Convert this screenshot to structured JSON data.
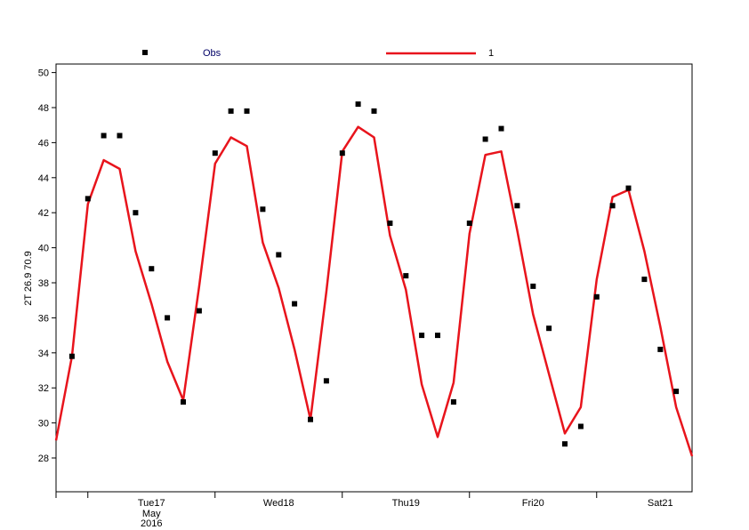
{
  "chart_data": {
    "type": "line",
    "ylabel": "2T 26.9 70.9",
    "xlabel": "",
    "ylim": [
      26,
      50.5
    ],
    "yticks": [
      28,
      30,
      32,
      34,
      36,
      38,
      40,
      42,
      44,
      46,
      48,
      50
    ],
    "grid": false,
    "legend_placement": "top",
    "x_start": "2016-05-16 18:00",
    "x_step_hours": 3,
    "xticks": [
      {
        "label": "Tue17",
        "sub": [
          "May",
          "2016"
        ],
        "time": "2016-05-17 12:00"
      },
      {
        "label": "Wed18",
        "sub": [],
        "time": "2016-05-18 12:00"
      },
      {
        "label": "Thu19",
        "sub": [],
        "time": "2016-05-19 12:00"
      },
      {
        "label": "Fri20",
        "sub": [],
        "time": "2016-05-20 12:00"
      },
      {
        "label": "Sat21",
        "sub": [],
        "time": "2016-05-21 12:00"
      }
    ],
    "series": [
      {
        "name": "Obs",
        "kind": "scatter",
        "color": "#000000",
        "values": [
          null,
          33.8,
          42.8,
          46.4,
          46.4,
          42.0,
          38.8,
          36.0,
          31.2,
          36.4,
          45.4,
          47.8,
          47.8,
          42.2,
          39.6,
          36.8,
          30.2,
          32.4,
          45.4,
          48.2,
          47.8,
          41.4,
          38.4,
          35.0,
          35.0,
          31.2,
          41.4,
          46.2,
          46.8,
          42.4,
          37.8,
          35.4,
          28.8,
          29.8,
          37.2,
          42.4,
          43.4,
          38.2,
          34.2,
          31.8,
          null
        ]
      },
      {
        "name": "1",
        "kind": "line",
        "color": "#e8141c",
        "values": [
          29.0,
          33.8,
          42.5,
          45.0,
          44.5,
          39.8,
          36.8,
          33.5,
          31.3,
          37.8,
          44.8,
          46.3,
          45.8,
          40.3,
          37.7,
          34.2,
          30.2,
          37.5,
          45.5,
          46.9,
          46.3,
          40.7,
          37.6,
          32.2,
          29.2,
          32.3,
          40.8,
          45.3,
          45.5,
          41.0,
          36.2,
          32.8,
          29.4,
          30.9,
          38.2,
          42.9,
          43.3,
          39.8,
          35.5,
          30.9,
          28.1
        ]
      }
    ]
  }
}
